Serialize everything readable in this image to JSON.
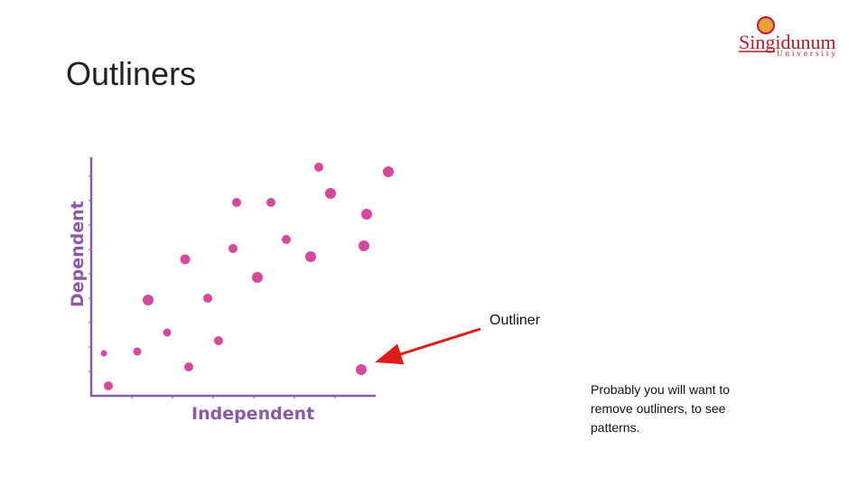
{
  "slide": {
    "title": "Outliners",
    "logo": {
      "name": "Singidunum",
      "subtitle": "University"
    },
    "illustration": {
      "y_axis_label": "Dependent",
      "x_axis_label": "Independent",
      "annotation": "Outliner"
    },
    "note": {
      "lines": [
        "Probably you will want to",
        "remove outliners, to see",
        "patterns."
      ]
    }
  }
}
